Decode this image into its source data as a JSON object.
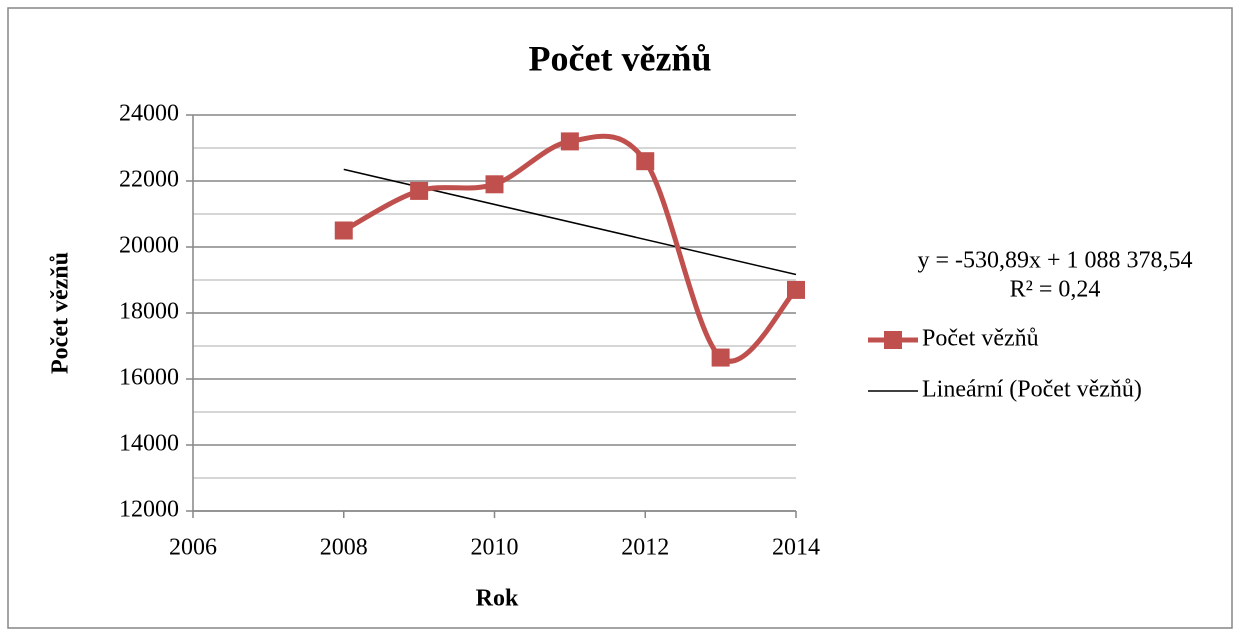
{
  "chart_data": {
    "type": "line",
    "title": "Počet vězňů",
    "x_label": "Rok",
    "y_label": "Počet vězňů",
    "x": [
      2008,
      2009,
      2010,
      2011,
      2012,
      2013,
      2014
    ],
    "series": [
      {
        "name": "Počet vězňů",
        "color": "#c0504d",
        "values": [
          20500,
          21700,
          21900,
          23200,
          22600,
          16650,
          18700
        ]
      }
    ],
    "trendline": {
      "name": "Lineární (Počet vězňů)",
      "color": "#000000",
      "slope": -530.89,
      "intercept": 1088378.54,
      "equation": "y = -530,89x + 1 088 378,54",
      "r2": 0.24,
      "r2_label": "R² = 0,24"
    },
    "xlim": [
      2006,
      2014
    ],
    "xticks": [
      2006,
      2008,
      2010,
      2012,
      2014
    ],
    "ylim": [
      12000,
      24000
    ],
    "yticks": [
      12000,
      14000,
      16000,
      18000,
      20000,
      22000,
      24000
    ],
    "y_minor_ticks": [
      13000,
      15000,
      17000,
      19000,
      21000,
      23000
    ],
    "grid": true,
    "legend": "right"
  }
}
